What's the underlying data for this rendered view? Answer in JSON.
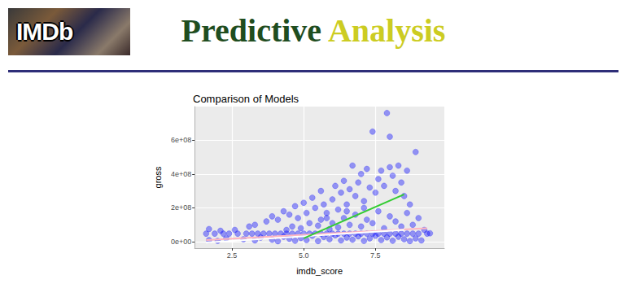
{
  "header": {
    "logo": "IMDb",
    "title": [
      {
        "text": "Predictive",
        "color": "#1f4d1f"
      },
      {
        "text": "Analysis",
        "color": "#cccc22"
      }
    ]
  },
  "chart_data": {
    "type": "scatter",
    "title": "Comparison of Models",
    "x_label": "imdb_score",
    "y_label": "gross",
    "xlim": [
      1.2,
      9.9
    ],
    "xticks": [
      2.5,
      {
        "value": 5,
        "label": "5.0"
      },
      7.5
    ],
    "ylim": [
      -38000000,
      798000000
    ],
    "yticks": [
      {
        "value": 0,
        "label": "0e+00"
      },
      {
        "value": 200000000,
        "label": "2e+08"
      },
      {
        "value": 400000000,
        "label": "4e+08"
      },
      {
        "value": 600000000,
        "label": "6e+08"
      }
    ],
    "grid": true,
    "series": [
      {
        "type": "scatter",
        "color": "#0000ff",
        "marker": "circle",
        "x": [
          1.6,
          1.9,
          2.2,
          2.4,
          2.7,
          3.0,
          3.2,
          3.4,
          3.6,
          3.8,
          4.0,
          4.2,
          4.4,
          4.6,
          4.8,
          5.0,
          5.2,
          5.4,
          5.6,
          5.8,
          6.0,
          6.2,
          6.4,
          6.6,
          6.8,
          7.0,
          7.2,
          7.4,
          7.6,
          7.8,
          8.0,
          8.2,
          8.4,
          8.6,
          8.8,
          9.0,
          9.3,
          1.7,
          2.0,
          2.3,
          2.9,
          3.3,
          3.5,
          3.9,
          4.1,
          4.3,
          4.5,
          4.7,
          4.9,
          5.1,
          5.3,
          5.5,
          5.7,
          5.9,
          6.1,
          6.3,
          6.5,
          6.7,
          6.9,
          7.1,
          7.3,
          7.5,
          7.7,
          7.9,
          8.1,
          8.3,
          8.5,
          8.7,
          8.9,
          9.1,
          9.4,
          1.7,
          2.1,
          2.6,
          3.1,
          3.3,
          3.7,
          3.9,
          4.1,
          4.3,
          4.5,
          4.7,
          4.8,
          5.0,
          5.1,
          5.3,
          5.4,
          5.6,
          5.7,
          5.8,
          6.0,
          6.1,
          6.2,
          6.3,
          6.4,
          6.5,
          6.6,
          6.7,
          6.8,
          6.9,
          7.0,
          7.1,
          7.2,
          7.3,
          7.4,
          7.5,
          7.6,
          7.7,
          7.8,
          7.9,
          8.0,
          8.0,
          8.1,
          8.2,
          8.3,
          8.4,
          8.5,
          8.6,
          8.7,
          8.9,
          9.0,
          9.2,
          4.4,
          4.6,
          4.9,
          5.2,
          5.5,
          5.6,
          5.9,
          6.0,
          6.2,
          6.4,
          6.6,
          6.8,
          7.0,
          7.2,
          7.4,
          7.6,
          7.8,
          8.0,
          8.2,
          8.4,
          8.6,
          8.8,
          6.5,
          7.1,
          5.8
        ],
        "values": [
          48000000.0,
          48000000.0,
          48000000.0,
          48000000.0,
          48000000.0,
          48000000.0,
          48000000.0,
          48000000.0,
          48000000.0,
          48000000.0,
          48000000.0,
          48000000.0,
          48000000.0,
          48000000.0,
          48000000.0,
          48000000.0,
          48000000.0,
          48000000.0,
          48000000.0,
          48000000.0,
          48000000.0,
          48000000.0,
          48000000.0,
          48000000.0,
          48000000.0,
          48000000.0,
          48000000.0,
          48000000.0,
          48000000.0,
          48000000.0,
          48000000.0,
          48000000.0,
          48000000.0,
          48000000.0,
          48000000.0,
          48000000.0,
          48000000.0,
          10000000.0,
          5000000.0,
          20000000.0,
          15000000.0,
          8000000.0,
          25000000.0,
          12000000.0,
          3000000.0,
          30000000.0,
          18000000.0,
          6000000.0,
          22000000.0,
          10000000.0,
          35000000.0,
          4000000.0,
          28000000.0,
          15000000.0,
          38000000.0,
          8000000.0,
          25000000.0,
          12000000.0,
          32000000.0,
          5000000.0,
          20000000.0,
          35000000.0,
          10000000.0,
          26000000.0,
          6000000.0,
          30000000.0,
          15000000.0,
          4000000.0,
          20000000.0,
          8000000.0,
          50000000.0,
          75000000.0,
          65000000.0,
          70000000.0,
          90000000.0,
          100000000.0,
          120000000.0,
          150000000.0,
          130000000.0,
          180000000.0,
          160000000.0,
          210000000.0,
          140000000.0,
          230000000.0,
          170000000.0,
          260000000.0,
          200000000.0,
          300000000.0,
          220000000.0,
          140000000.0,
          250000000.0,
          330000000.0,
          190000000.0,
          290000000.0,
          360000000.0,
          220000000.0,
          310000000.0,
          450000000.0,
          270000000.0,
          350000000.0,
          400000000.0,
          240000000.0,
          430000000.0,
          320000000.0,
          650000000.0,
          290000000.0,
          370000000.0,
          420000000.0,
          330000000.0,
          760000000.0,
          620000000.0,
          440000000.0,
          390000000.0,
          300000000.0,
          450000000.0,
          350000000.0,
          270000000.0,
          420000000.0,
          220000000.0,
          530000000.0,
          140000000.0,
          70000000.0,
          70000000.0,
          90000000.0,
          80000000.0,
          110000000.0,
          95000000.0,
          130000000.0,
          75000000.0,
          110000000.0,
          85000000.0,
          140000000.0,
          100000000.0,
          160000000.0,
          90000000.0,
          130000000.0,
          110000000.0,
          180000000.0,
          80000000.0,
          150000000.0,
          120000000.0,
          90000000.0,
          170000000.0,
          100000000.0,
          180000000.0,
          200000000.0,
          170000000.0
        ]
      },
      {
        "type": "line",
        "color": "#ffb6c1",
        "line_style": "solid",
        "x": [
          1.6,
          9.3
        ],
        "values": [
          10000000.0,
          80000000.0
        ]
      },
      {
        "type": "line",
        "color": "#ffffff",
        "line_style": "solid",
        "x": [
          1.6,
          8.5
        ],
        "values": [
          -5000000.0,
          70000000.0
        ]
      },
      {
        "type": "line",
        "color": "#33cc33",
        "line_style": "solid",
        "x": [
          5.0,
          8.5
        ],
        "values": [
          20000000.0,
          280000000.0
        ]
      }
    ]
  }
}
